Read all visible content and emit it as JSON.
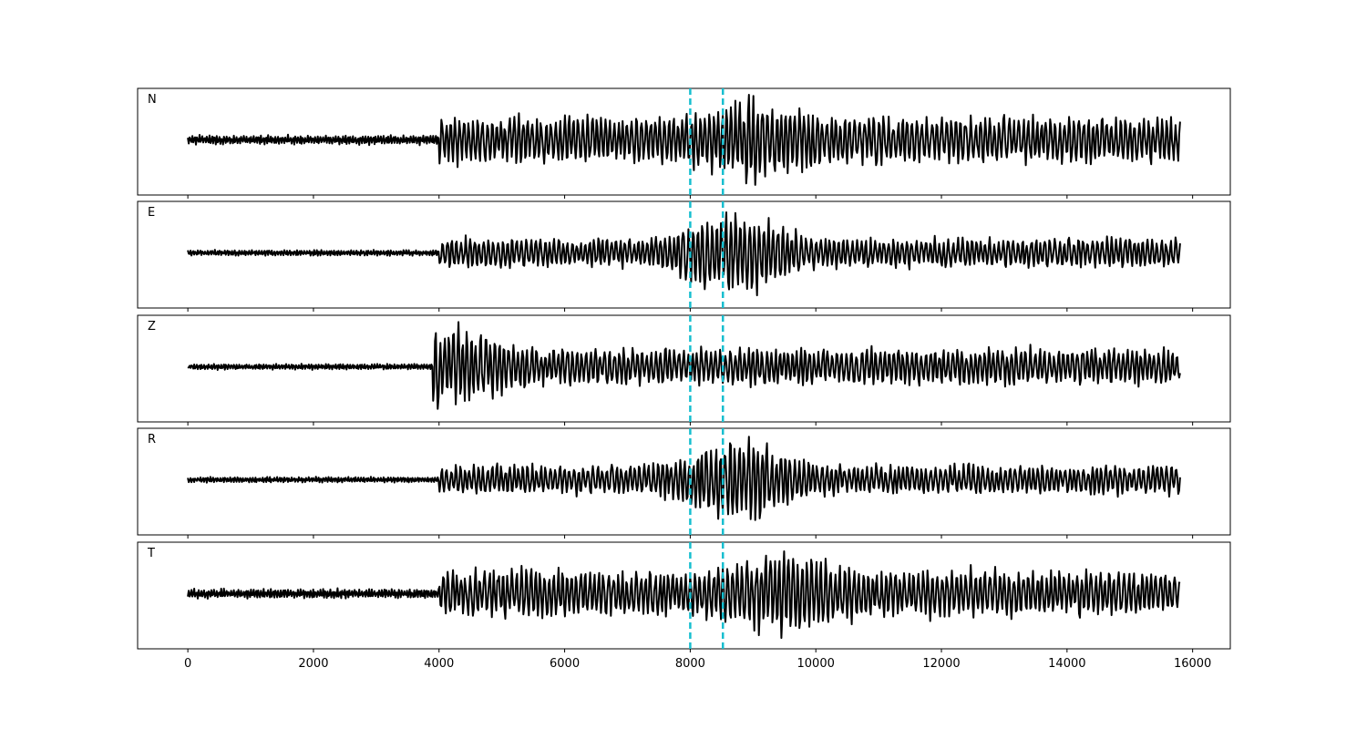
{
  "chart_data": {
    "type": "line",
    "title": "",
    "xlabel": "",
    "ylabel": "",
    "xlim": [
      -800,
      16600
    ],
    "xticks": [
      0,
      2000,
      4000,
      6000,
      8000,
      10000,
      12000,
      14000,
      16000
    ],
    "xtick_labels": [
      "0",
      "2000",
      "4000",
      "6000",
      "8000",
      "10000",
      "12000",
      "14000",
      "16000"
    ],
    "yticks_visible": false,
    "grid": false,
    "legend": "none",
    "line_color": "#000000",
    "marker_color": "#17becf",
    "marker_lines": [
      8000,
      8520
    ],
    "series": [
      {
        "name": "N",
        "x_start": 0,
        "x_end": 15800,
        "noise_amp": 0.1,
        "onset": 4000,
        "coda_amp": 0.55,
        "peak_x": 9000,
        "peak_amp": 0.95
      },
      {
        "name": "E",
        "x_start": 0,
        "x_end": 15800,
        "noise_amp": 0.06,
        "onset": 4000,
        "coda_amp": 0.35,
        "peak_x": 8700,
        "peak_amp": 0.95
      },
      {
        "name": "Z",
        "x_start": 0,
        "x_end": 15800,
        "noise_amp": 0.06,
        "onset": 3900,
        "coda_amp": 0.45,
        "peak_x": 4150,
        "peak_amp": 0.95
      },
      {
        "name": "R",
        "x_start": 0,
        "x_end": 15800,
        "noise_amp": 0.06,
        "onset": 4000,
        "coda_amp": 0.35,
        "peak_x": 8800,
        "peak_amp": 0.95
      },
      {
        "name": "T",
        "x_start": 0,
        "x_end": 15800,
        "noise_amp": 0.1,
        "onset": 4000,
        "coda_amp": 0.55,
        "peak_x": 9500,
        "peak_amp": 0.95
      }
    ]
  }
}
